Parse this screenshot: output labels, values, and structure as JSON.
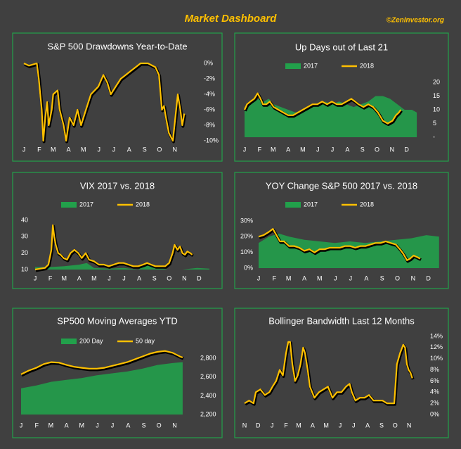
{
  "header": {
    "title": "Market Dashboard",
    "credit": "©ZenInvestor.org"
  },
  "chart_data": [
    {
      "type": "line",
      "title": "S&P 500 Drawdowns Year-to-Date",
      "legend": false,
      "xlim": [
        0,
        334
      ],
      "xticks": [
        {
          "value": 0,
          "label": "J"
        },
        {
          "value": 31,
          "label": "F"
        },
        {
          "value": 59,
          "label": "M"
        },
        {
          "value": 90,
          "label": "A"
        },
        {
          "value": 120,
          "label": "M"
        },
        {
          "value": 151,
          "label": "J"
        },
        {
          "value": 181,
          "label": "J"
        },
        {
          "value": 212,
          "label": "A"
        },
        {
          "value": 243,
          "label": "S"
        },
        {
          "value": 273,
          "label": "O"
        },
        {
          "value": 304,
          "label": "N"
        }
      ],
      "ylim": [
        -10,
        0
      ],
      "yticks": [
        {
          "value": 0,
          "label": "0%"
        },
        {
          "value": -2,
          "label": "-2%"
        },
        {
          "value": -4,
          "label": "-4%"
        },
        {
          "value": -6,
          "label": "-6%"
        },
        {
          "value": -8,
          "label": "-8%"
        },
        {
          "value": -10,
          "label": "-10%"
        }
      ],
      "series": [
        {
          "color": "#ffc000",
          "style": "line",
          "x": [
            0,
            10,
            26,
            30,
            36,
            39,
            43,
            47,
            50,
            56,
            59,
            68,
            72,
            80,
            85,
            92,
            100,
            108,
            115,
            125,
            135,
            150,
            160,
            168,
            175,
            185,
            195,
            205,
            215,
            225,
            235,
            250,
            265,
            272,
            278,
            282,
            286,
            292,
            300,
            305,
            310,
            315,
            319,
            323
          ],
          "values": [
            0,
            -0.3,
            0,
            -2,
            -6,
            -10,
            -7,
            -5,
            -8,
            -6,
            -4,
            -3.5,
            -6,
            -8,
            -10,
            -7,
            -8,
            -6,
            -8,
            -6,
            -4,
            -3,
            -1.5,
            -2.5,
            -4,
            -3,
            -2,
            -1.5,
            -1,
            -0.5,
            0,
            0,
            -0.5,
            -1.5,
            -6,
            -5.5,
            -7,
            -9,
            -10,
            -7,
            -4,
            -6,
            -8,
            -6.5
          ]
        }
      ]
    },
    {
      "type": "line",
      "title": "Up Days out of Last 21",
      "legend": true,
      "xlim": [
        0,
        365
      ],
      "xticks": [
        {
          "value": 0,
          "label": "J"
        },
        {
          "value": 31,
          "label": "F"
        },
        {
          "value": 59,
          "label": "M"
        },
        {
          "value": 90,
          "label": "A"
        },
        {
          "value": 120,
          "label": "M"
        },
        {
          "value": 151,
          "label": "J"
        },
        {
          "value": 181,
          "label": "J"
        },
        {
          "value": 212,
          "label": "A"
        },
        {
          "value": 243,
          "label": "S"
        },
        {
          "value": 273,
          "label": "O"
        },
        {
          "value": 304,
          "label": "N"
        },
        {
          "value": 334,
          "label": "D"
        }
      ],
      "ylim": [
        0,
        20
      ],
      "yticks": [
        {
          "value": 0,
          "label": "-"
        },
        5,
        10,
        15,
        20
      ],
      "series": [
        {
          "name": "2017",
          "color": "#22a04b",
          "style": "area",
          "x": [
            0,
            10,
            20,
            30,
            40,
            50,
            60,
            75,
            90,
            105,
            120,
            135,
            150,
            165,
            180,
            195,
            210,
            225,
            240,
            255,
            270,
            285,
            300,
            315,
            330,
            345,
            355
          ],
          "values": [
            11,
            12,
            13,
            14,
            13,
            14,
            12,
            11,
            10,
            9,
            10,
            11,
            12,
            13,
            12,
            13,
            12,
            11,
            12,
            13,
            15,
            15,
            14,
            12,
            10,
            10,
            9
          ]
        },
        {
          "name": "2018",
          "color": "#ffc000",
          "style": "line",
          "x": [
            0,
            5,
            12,
            20,
            27,
            33,
            38,
            45,
            52,
            60,
            70,
            80,
            90,
            100,
            110,
            120,
            130,
            140,
            150,
            160,
            170,
            180,
            190,
            200,
            210,
            220,
            228,
            235,
            245,
            255,
            265,
            275,
            285,
            295,
            305,
            312,
            318,
            322
          ],
          "values": [
            10,
            12,
            13,
            14,
            16,
            14,
            12,
            12,
            13,
            11,
            10,
            9,
            8,
            8,
            9,
            10,
            11,
            12,
            12,
            13,
            12,
            13,
            12,
            12,
            13,
            14,
            13,
            12,
            11,
            12,
            11,
            9,
            6,
            5,
            6,
            8,
            9,
            10
          ]
        }
      ]
    },
    {
      "type": "line",
      "title": "VIX 2017 vs. 2018",
      "legend": true,
      "xlim": [
        0,
        365
      ],
      "xticks": [
        {
          "value": 0,
          "label": "J"
        },
        {
          "value": 31,
          "label": "F"
        },
        {
          "value": 59,
          "label": "M"
        },
        {
          "value": 90,
          "label": "A"
        },
        {
          "value": 120,
          "label": "M"
        },
        {
          "value": 151,
          "label": "J"
        },
        {
          "value": 181,
          "label": "J"
        },
        {
          "value": 212,
          "label": "A"
        },
        {
          "value": 243,
          "label": "S"
        },
        {
          "value": 273,
          "label": "O"
        },
        {
          "value": 304,
          "label": "N"
        },
        {
          "value": 334,
          "label": "D"
        }
      ],
      "ylim": [
        10,
        40
      ],
      "yticks": [
        10,
        20,
        30,
        40
      ],
      "series": [
        {
          "name": "2017",
          "color": "#22a04b",
          "style": "area",
          "x": [
            0,
            30,
            60,
            90,
            105,
            120,
            150,
            180,
            210,
            225,
            240,
            270,
            300,
            330,
            355
          ],
          "values": [
            11.5,
            11.5,
            12,
            13,
            14,
            11,
            10.5,
            11,
            10,
            13,
            12,
            10,
            10,
            11,
            10.5
          ]
        },
        {
          "name": "2018",
          "color": "#ffc000",
          "style": "line",
          "x": [
            0,
            10,
            20,
            27,
            33,
            36,
            39,
            42,
            47,
            52,
            58,
            65,
            72,
            80,
            88,
            95,
            103,
            110,
            120,
            130,
            140,
            150,
            160,
            170,
            180,
            190,
            200,
            210,
            220,
            228,
            236,
            245,
            255,
            265,
            273,
            280,
            284,
            290,
            295,
            300,
            305,
            310,
            316,
            320
          ],
          "values": [
            10,
            10.5,
            11,
            13,
            22,
            37,
            30,
            25,
            20,
            19,
            17,
            16,
            20,
            22,
            20,
            17,
            20,
            16,
            15,
            13,
            13,
            12,
            13,
            14,
            14,
            13,
            12,
            12,
            13,
            14,
            13,
            12,
            12,
            12,
            14,
            20,
            25,
            22,
            24,
            20,
            19,
            21,
            20,
            19
          ]
        }
      ]
    },
    {
      "type": "line",
      "title": "YOY Change S&P 500 2017 vs. 2018",
      "legend": true,
      "xlim": [
        0,
        365
      ],
      "xticks": [
        {
          "value": 0,
          "label": "J"
        },
        {
          "value": 31,
          "label": "F"
        },
        {
          "value": 59,
          "label": "M"
        },
        {
          "value": 90,
          "label": "A"
        },
        {
          "value": 120,
          "label": "M"
        },
        {
          "value": 151,
          "label": "J"
        },
        {
          "value": 181,
          "label": "J"
        },
        {
          "value": 212,
          "label": "A"
        },
        {
          "value": 243,
          "label": "S"
        },
        {
          "value": 273,
          "label": "O"
        },
        {
          "value": 304,
          "label": "N"
        },
        {
          "value": 334,
          "label": "D"
        }
      ],
      "ylim": [
        0,
        30
      ],
      "yticks": [
        {
          "value": 0,
          "label": "0%"
        },
        {
          "value": 10,
          "label": "10%"
        },
        {
          "value": 20,
          "label": "20%"
        },
        {
          "value": 30,
          "label": "30%"
        }
      ],
      "series": [
        {
          "name": "2017",
          "color": "#22a04b",
          "style": "area",
          "x": [
            0,
            20,
            40,
            60,
            90,
            120,
            150,
            180,
            210,
            240,
            270,
            300,
            330,
            355
          ],
          "values": [
            16,
            20,
            22,
            20,
            18,
            17,
            16,
            17,
            16,
            17,
            18,
            19,
            21,
            20
          ]
        },
        {
          "name": "2018",
          "color": "#ffc000",
          "style": "line",
          "x": [
            0,
            10,
            20,
            28,
            35,
            42,
            50,
            60,
            70,
            80,
            90,
            100,
            110,
            120,
            130,
            140,
            150,
            160,
            170,
            180,
            190,
            200,
            210,
            220,
            230,
            240,
            250,
            260,
            270,
            278,
            285,
            292,
            298,
            305,
            312,
            318
          ],
          "values": [
            20,
            21,
            23,
            25,
            21,
            17,
            17,
            14,
            14,
            13,
            11,
            12,
            10,
            12,
            12,
            13,
            13,
            13,
            14,
            14,
            13,
            14,
            14,
            15,
            16,
            16,
            17,
            16,
            15,
            12,
            9,
            5,
            6,
            8,
            7,
            6
          ]
        }
      ]
    },
    {
      "type": "line",
      "title": "SP500 Moving Averages YTD",
      "legend": true,
      "xlim": [
        0,
        334
      ],
      "xticks": [
        {
          "value": 0,
          "label": "J"
        },
        {
          "value": 31,
          "label": "F"
        },
        {
          "value": 59,
          "label": "M"
        },
        {
          "value": 90,
          "label": "A"
        },
        {
          "value": 120,
          "label": "M"
        },
        {
          "value": 151,
          "label": "J"
        },
        {
          "value": 181,
          "label": "J"
        },
        {
          "value": 212,
          "label": "A"
        },
        {
          "value": 243,
          "label": "S"
        },
        {
          "value": 273,
          "label": "O"
        },
        {
          "value": 304,
          "label": "N"
        }
      ],
      "ylim": [
        2200,
        2900
      ],
      "yticks": [
        {
          "value": 2200,
          "label": "2,200"
        },
        {
          "value": 2400,
          "label": "2,400"
        },
        {
          "value": 2600,
          "label": "2,600"
        },
        {
          "value": 2800,
          "label": "2,800"
        }
      ],
      "series": [
        {
          "name": "200 Day",
          "color": "#22a04b",
          "style": "area",
          "x": [
            0,
            30,
            60,
            90,
            120,
            150,
            180,
            210,
            240,
            270,
            300,
            320
          ],
          "values": [
            2480,
            2510,
            2550,
            2570,
            2590,
            2620,
            2640,
            2660,
            2690,
            2730,
            2750,
            2760
          ]
        },
        {
          "name": "50 day",
          "color": "#ffc000",
          "style": "line",
          "x": [
            0,
            15,
            30,
            45,
            60,
            75,
            90,
            105,
            120,
            135,
            150,
            165,
            180,
            195,
            210,
            225,
            240,
            255,
            270,
            285,
            300,
            315,
            320
          ],
          "values": [
            2630,
            2670,
            2700,
            2740,
            2760,
            2755,
            2730,
            2710,
            2700,
            2690,
            2690,
            2700,
            2720,
            2740,
            2760,
            2790,
            2820,
            2850,
            2870,
            2880,
            2860,
            2820,
            2810
          ]
        }
      ]
    },
    {
      "type": "line",
      "title": "Bollinger Bandwidth Last 12 Months",
      "legend": false,
      "xlim": [
        0,
        385
      ],
      "xticks": [
        {
          "value": 0,
          "label": "N"
        },
        {
          "value": 30,
          "label": "D"
        },
        {
          "value": 61,
          "label": "J"
        },
        {
          "value": 92,
          "label": "F"
        },
        {
          "value": 120,
          "label": "M"
        },
        {
          "value": 151,
          "label": "A"
        },
        {
          "value": 181,
          "label": "M"
        },
        {
          "value": 212,
          "label": "J"
        },
        {
          "value": 242,
          "label": "J"
        },
        {
          "value": 273,
          "label": "A"
        },
        {
          "value": 304,
          "label": "S"
        },
        {
          "value": 334,
          "label": "O"
        },
        {
          "value": 365,
          "label": "N"
        }
      ],
      "ylim": [
        0,
        14
      ],
      "yticks": [
        {
          "value": 0,
          "label": "0%"
        },
        {
          "value": 2,
          "label": "2%"
        },
        {
          "value": 4,
          "label": "4%"
        },
        {
          "value": 6,
          "label": "6%"
        },
        {
          "value": 8,
          "label": "8%"
        },
        {
          "value": 10,
          "label": "10%"
        },
        {
          "value": 12,
          "label": "12%"
        },
        {
          "value": 14,
          "label": "14%"
        }
      ],
      "series": [
        {
          "color": "#ffc000",
          "style": "line",
          "x": [
            0,
            10,
            20,
            25,
            35,
            45,
            55,
            62,
            70,
            78,
            85,
            92,
            97,
            101,
            106,
            112,
            118,
            124,
            130,
            134,
            140,
            145,
            155,
            165,
            175,
            185,
            190,
            195,
            205,
            215,
            225,
            233,
            238,
            246,
            256,
            266,
            276,
            286,
            296,
            306,
            316,
            326,
            332,
            338,
            345,
            352,
            356,
            360,
            364,
            368,
            372
          ],
          "values": [
            2,
            2.5,
            2,
            4,
            4.5,
            3.5,
            4,
            5,
            6,
            8,
            7,
            11,
            13,
            13,
            9,
            6,
            7,
            9,
            12,
            11,
            8,
            5,
            3,
            4,
            4.5,
            5,
            4,
            3,
            4,
            4,
            5,
            5.5,
            4,
            2.5,
            3,
            3,
            3.5,
            2.5,
            2.5,
            2.5,
            2,
            2,
            2,
            9,
            11,
            12.5,
            12,
            9,
            8,
            7.5,
            6.5
          ]
        }
      ]
    }
  ]
}
